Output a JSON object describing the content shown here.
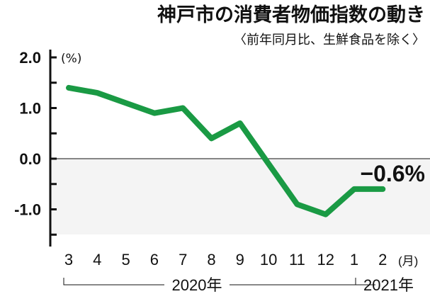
{
  "chart_data": {
    "type": "line",
    "title": "神戸市の消費者物価指数の動き",
    "subtitle": "〈前年同月比、生鮮食品を除く〉",
    "ylabel": "(%)",
    "xlabel_unit": "(月)",
    "categories": [
      "3",
      "4",
      "5",
      "6",
      "7",
      "8",
      "9",
      "10",
      "11",
      "12",
      "1",
      "2"
    ],
    "year_labels": [
      "2020年",
      "2021年"
    ],
    "series": [
      {
        "name": "消費者物価指数",
        "values": [
          1.4,
          1.3,
          1.1,
          0.9,
          1.0,
          0.4,
          0.7,
          -0.1,
          -0.9,
          -1.1,
          -0.6,
          -0.6
        ],
        "color": "#1a9a44"
      }
    ],
    "ylim": [
      -1.5,
      2.0
    ],
    "yticks": [
      2.0,
      1.0,
      0.0,
      -1.0
    ],
    "ytick_labels": [
      "2.0",
      "1.0",
      "0.0",
      "-1.0"
    ],
    "annotation": "−0.6%",
    "negative_region_color": "#f4f4f4"
  }
}
